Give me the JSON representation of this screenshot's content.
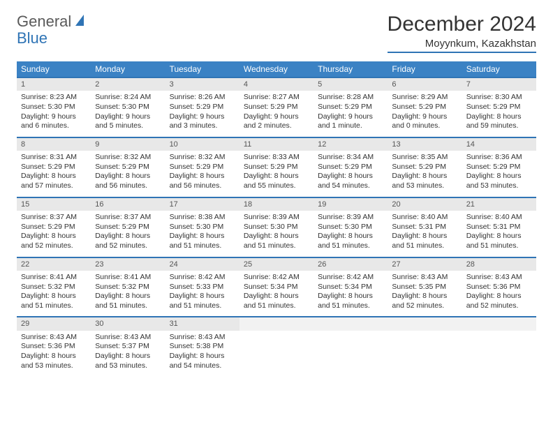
{
  "logo": {
    "general": "General",
    "blue": "Blue"
  },
  "title": "December 2024",
  "location": "Moyynkum, Kazakhstan",
  "colors": {
    "header_bg": "#3b82c4",
    "header_text": "#ffffff",
    "accent": "#2f74b5",
    "daynum_bg": "#e8e8e8",
    "text": "#333333",
    "logo_gray": "#5a5a5a"
  },
  "daysOfWeek": [
    "Sunday",
    "Monday",
    "Tuesday",
    "Wednesday",
    "Thursday",
    "Friday",
    "Saturday"
  ],
  "weeks": [
    [
      {
        "n": "1",
        "sr": "Sunrise: 8:23 AM",
        "ss": "Sunset: 5:30 PM",
        "dl": "Daylight: 9 hours and 6 minutes."
      },
      {
        "n": "2",
        "sr": "Sunrise: 8:24 AM",
        "ss": "Sunset: 5:30 PM",
        "dl": "Daylight: 9 hours and 5 minutes."
      },
      {
        "n": "3",
        "sr": "Sunrise: 8:26 AM",
        "ss": "Sunset: 5:29 PM",
        "dl": "Daylight: 9 hours and 3 minutes."
      },
      {
        "n": "4",
        "sr": "Sunrise: 8:27 AM",
        "ss": "Sunset: 5:29 PM",
        "dl": "Daylight: 9 hours and 2 minutes."
      },
      {
        "n": "5",
        "sr": "Sunrise: 8:28 AM",
        "ss": "Sunset: 5:29 PM",
        "dl": "Daylight: 9 hours and 1 minute."
      },
      {
        "n": "6",
        "sr": "Sunrise: 8:29 AM",
        "ss": "Sunset: 5:29 PM",
        "dl": "Daylight: 9 hours and 0 minutes."
      },
      {
        "n": "7",
        "sr": "Sunrise: 8:30 AM",
        "ss": "Sunset: 5:29 PM",
        "dl": "Daylight: 8 hours and 59 minutes."
      }
    ],
    [
      {
        "n": "8",
        "sr": "Sunrise: 8:31 AM",
        "ss": "Sunset: 5:29 PM",
        "dl": "Daylight: 8 hours and 57 minutes."
      },
      {
        "n": "9",
        "sr": "Sunrise: 8:32 AM",
        "ss": "Sunset: 5:29 PM",
        "dl": "Daylight: 8 hours and 56 minutes."
      },
      {
        "n": "10",
        "sr": "Sunrise: 8:32 AM",
        "ss": "Sunset: 5:29 PM",
        "dl": "Daylight: 8 hours and 56 minutes."
      },
      {
        "n": "11",
        "sr": "Sunrise: 8:33 AM",
        "ss": "Sunset: 5:29 PM",
        "dl": "Daylight: 8 hours and 55 minutes."
      },
      {
        "n": "12",
        "sr": "Sunrise: 8:34 AM",
        "ss": "Sunset: 5:29 PM",
        "dl": "Daylight: 8 hours and 54 minutes."
      },
      {
        "n": "13",
        "sr": "Sunrise: 8:35 AM",
        "ss": "Sunset: 5:29 PM",
        "dl": "Daylight: 8 hours and 53 minutes."
      },
      {
        "n": "14",
        "sr": "Sunrise: 8:36 AM",
        "ss": "Sunset: 5:29 PM",
        "dl": "Daylight: 8 hours and 53 minutes."
      }
    ],
    [
      {
        "n": "15",
        "sr": "Sunrise: 8:37 AM",
        "ss": "Sunset: 5:29 PM",
        "dl": "Daylight: 8 hours and 52 minutes."
      },
      {
        "n": "16",
        "sr": "Sunrise: 8:37 AM",
        "ss": "Sunset: 5:29 PM",
        "dl": "Daylight: 8 hours and 52 minutes."
      },
      {
        "n": "17",
        "sr": "Sunrise: 8:38 AM",
        "ss": "Sunset: 5:30 PM",
        "dl": "Daylight: 8 hours and 51 minutes."
      },
      {
        "n": "18",
        "sr": "Sunrise: 8:39 AM",
        "ss": "Sunset: 5:30 PM",
        "dl": "Daylight: 8 hours and 51 minutes."
      },
      {
        "n": "19",
        "sr": "Sunrise: 8:39 AM",
        "ss": "Sunset: 5:30 PM",
        "dl": "Daylight: 8 hours and 51 minutes."
      },
      {
        "n": "20",
        "sr": "Sunrise: 8:40 AM",
        "ss": "Sunset: 5:31 PM",
        "dl": "Daylight: 8 hours and 51 minutes."
      },
      {
        "n": "21",
        "sr": "Sunrise: 8:40 AM",
        "ss": "Sunset: 5:31 PM",
        "dl": "Daylight: 8 hours and 51 minutes."
      }
    ],
    [
      {
        "n": "22",
        "sr": "Sunrise: 8:41 AM",
        "ss": "Sunset: 5:32 PM",
        "dl": "Daylight: 8 hours and 51 minutes."
      },
      {
        "n": "23",
        "sr": "Sunrise: 8:41 AM",
        "ss": "Sunset: 5:32 PM",
        "dl": "Daylight: 8 hours and 51 minutes."
      },
      {
        "n": "24",
        "sr": "Sunrise: 8:42 AM",
        "ss": "Sunset: 5:33 PM",
        "dl": "Daylight: 8 hours and 51 minutes."
      },
      {
        "n": "25",
        "sr": "Sunrise: 8:42 AM",
        "ss": "Sunset: 5:34 PM",
        "dl": "Daylight: 8 hours and 51 minutes."
      },
      {
        "n": "26",
        "sr": "Sunrise: 8:42 AM",
        "ss": "Sunset: 5:34 PM",
        "dl": "Daylight: 8 hours and 51 minutes."
      },
      {
        "n": "27",
        "sr": "Sunrise: 8:43 AM",
        "ss": "Sunset: 5:35 PM",
        "dl": "Daylight: 8 hours and 52 minutes."
      },
      {
        "n": "28",
        "sr": "Sunrise: 8:43 AM",
        "ss": "Sunset: 5:36 PM",
        "dl": "Daylight: 8 hours and 52 minutes."
      }
    ],
    [
      {
        "n": "29",
        "sr": "Sunrise: 8:43 AM",
        "ss": "Sunset: 5:36 PM",
        "dl": "Daylight: 8 hours and 53 minutes."
      },
      {
        "n": "30",
        "sr": "Sunrise: 8:43 AM",
        "ss": "Sunset: 5:37 PM",
        "dl": "Daylight: 8 hours and 53 minutes."
      },
      {
        "n": "31",
        "sr": "Sunrise: 8:43 AM",
        "ss": "Sunset: 5:38 PM",
        "dl": "Daylight: 8 hours and 54 minutes."
      },
      null,
      null,
      null,
      null
    ]
  ]
}
